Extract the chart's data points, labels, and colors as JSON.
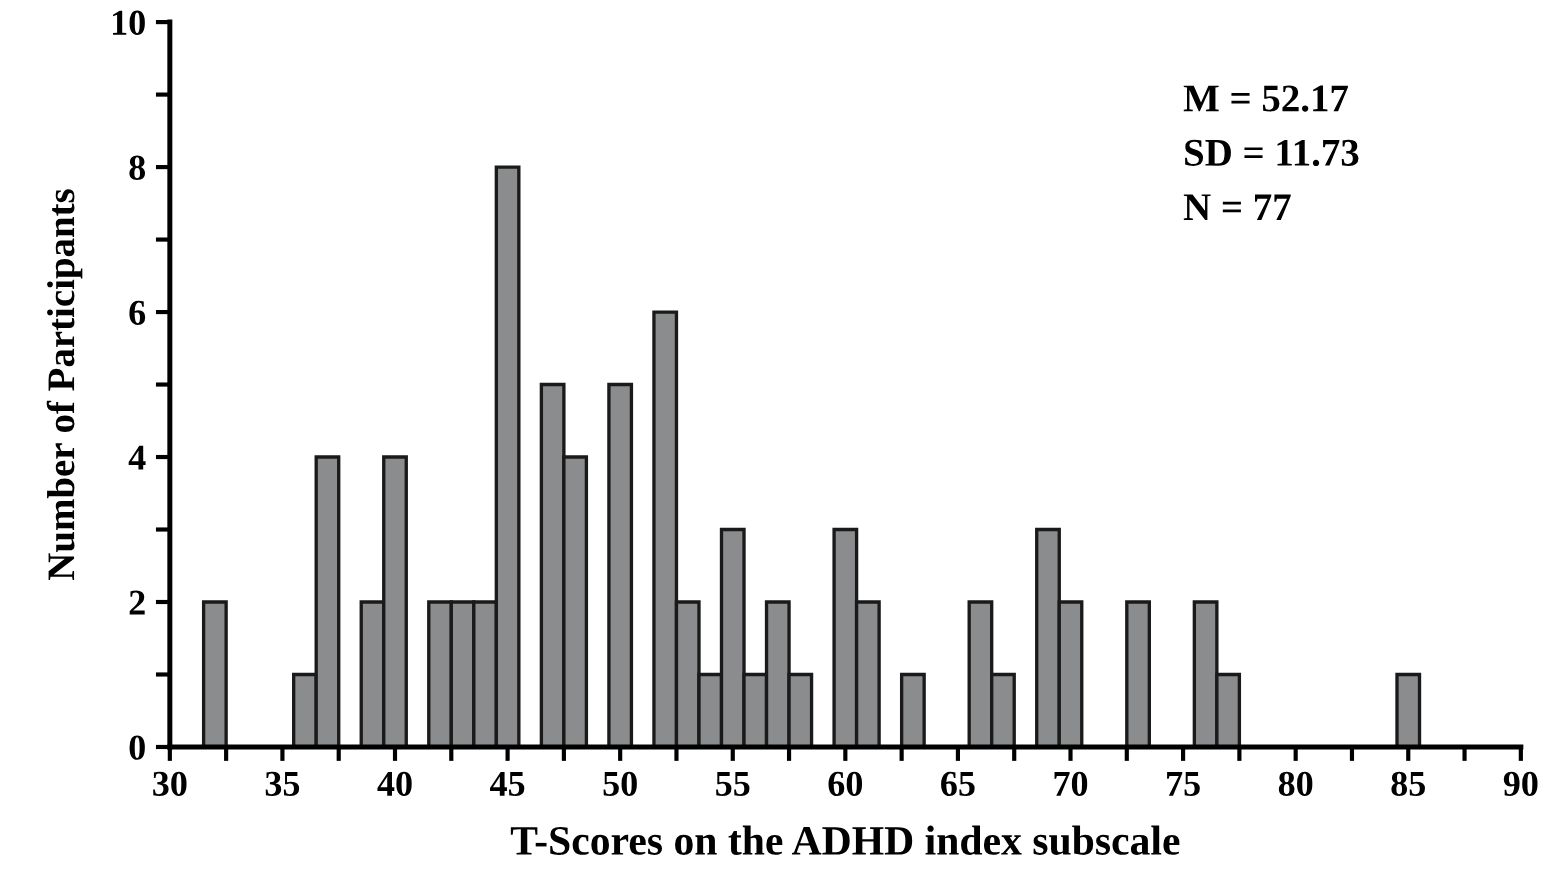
{
  "chart_data": {
    "type": "histogram",
    "xlabel": "T-Scores on the ADHD index subscale",
    "ylabel": "Number of Participants",
    "bins": [
      31.5,
      32.5,
      33.5,
      34.5,
      35.5,
      36.5,
      37.5,
      38.5,
      39.5,
      40.5,
      41.5,
      42.5,
      43.5,
      44.5,
      45.5,
      46.5,
      47.5,
      48.5,
      49.5,
      50.5,
      51.5,
      52.5,
      53.5,
      54.5,
      55.5,
      56.5,
      57.5,
      58.5,
      59.5,
      60.5,
      61.5,
      62.5,
      63.5,
      64.5,
      65.5,
      66.5,
      67.5,
      68.5,
      69.5,
      70.5,
      71.5,
      72.5,
      73.5,
      74.5,
      75.5,
      76.5,
      77.5,
      78.5,
      79.5,
      80.5,
      81.5,
      82.5,
      83.5,
      84.5,
      85.5
    ],
    "values": [
      2,
      0,
      0,
      0,
      1,
      4,
      0,
      2,
      4,
      0,
      2,
      2,
      2,
      8,
      0,
      5,
      4,
      0,
      5,
      0,
      6,
      2,
      1,
      3,
      1,
      2,
      1,
      0,
      3,
      2,
      0,
      1,
      0,
      0,
      2,
      1,
      0,
      3,
      2,
      0,
      0,
      2,
      0,
      0,
      2,
      1,
      0,
      0,
      0,
      0,
      0,
      0,
      0,
      1
    ],
    "color": "#8a8c8e",
    "xlim": [
      30,
      90
    ],
    "xticks": [
      30,
      {
        "value": 32.5,
        "label": null
      },
      35,
      {
        "value": 37.5,
        "label": null
      },
      40,
      {
        "value": 42.5,
        "label": null
      },
      45,
      {
        "value": 47.5,
        "label": null
      },
      50,
      {
        "value": 52.5,
        "label": null
      },
      55,
      {
        "value": 57.5,
        "label": null
      },
      60,
      {
        "value": 62.5,
        "label": null
      },
      65,
      {
        "value": 67.5,
        "label": null
      },
      70,
      {
        "value": 72.5,
        "label": null
      },
      75,
      {
        "value": 77.5,
        "label": null
      },
      80,
      {
        "value": 82.5,
        "label": null
      },
      85,
      {
        "value": 87.5,
        "label": null
      },
      90
    ],
    "ylim": [
      0,
      10
    ],
    "yticks": [
      0,
      {
        "value": 1,
        "label": null
      },
      2,
      {
        "value": 3,
        "label": null
      },
      4,
      {
        "value": 5,
        "label": null
      },
      6,
      {
        "value": 7,
        "label": null
      },
      8,
      {
        "value": 9,
        "label": null
      },
      10
    ],
    "annotations": [
      "M = 52.17",
      "SD = 11.73",
      "N = 77"
    ],
    "grid": false,
    "legend": false
  }
}
